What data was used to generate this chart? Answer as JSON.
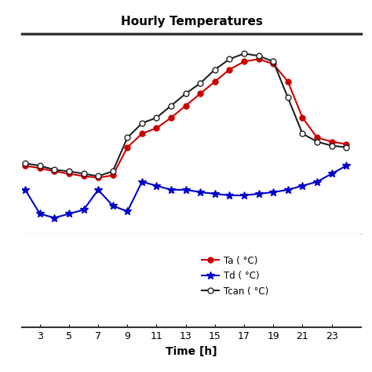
{
  "title": "Hourly Temperatures",
  "xlabel": "Time [h]",
  "x_ticks": [
    3,
    5,
    7,
    9,
    11,
    13,
    15,
    17,
    19,
    21,
    23
  ],
  "Ta": {
    "x": [
      2,
      3,
      4,
      5,
      6,
      7,
      8,
      9,
      10,
      11,
      12,
      13,
      14,
      15,
      16,
      17,
      18,
      19,
      20,
      21,
      22,
      23,
      24
    ],
    "y": [
      13.5,
      13.2,
      12.8,
      12.5,
      12.2,
      12.0,
      12.3,
      15.8,
      17.5,
      18.2,
      19.5,
      21.0,
      22.5,
      24.0,
      25.5,
      26.5,
      26.8,
      26.2,
      24.0,
      19.5,
      17.0,
      16.5,
      16.2
    ],
    "color": "#cc0000",
    "marker": "o",
    "markersize": 5,
    "label": "Ta ( °C)"
  },
  "Td": {
    "x": [
      2,
      3,
      4,
      5,
      6,
      7,
      8,
      9,
      10,
      11,
      12,
      13,
      14,
      15,
      16,
      17,
      18,
      19,
      20,
      21,
      22,
      23,
      24
    ],
    "y": [
      10.5,
      7.5,
      7.0,
      7.5,
      8.0,
      10.5,
      8.5,
      7.8,
      11.5,
      11.0,
      10.5,
      10.5,
      10.2,
      10.0,
      9.8,
      9.8,
      10.0,
      10.2,
      10.5,
      11.0,
      11.5,
      12.5,
      13.5
    ],
    "color": "#0000cc",
    "marker": "*",
    "markersize": 7,
    "label": "Td ( °C)"
  },
  "Tcan": {
    "x": [
      2,
      3,
      4,
      5,
      6,
      7,
      8,
      9,
      10,
      11,
      12,
      13,
      14,
      15,
      16,
      17,
      18,
      19,
      20,
      21,
      22,
      23,
      24
    ],
    "y": [
      13.8,
      13.5,
      13.0,
      12.8,
      12.5,
      12.2,
      12.8,
      17.0,
      18.8,
      19.5,
      21.0,
      22.5,
      23.8,
      25.5,
      26.8,
      27.5,
      27.2,
      26.5,
      22.0,
      17.5,
      16.5,
      16.0,
      15.8
    ],
    "color": "#222222",
    "marker": "o",
    "markersize": 5,
    "markerfacecolor": "white",
    "label": "Tcan ( °C)"
  },
  "ylim": [
    5,
    30
  ],
  "xlim": [
    1.8,
    25.0
  ],
  "background_color": "#ffffff",
  "plot_bg": "#f5f5f5",
  "grid_color": "#aaaaaa",
  "grid_style": ":"
}
